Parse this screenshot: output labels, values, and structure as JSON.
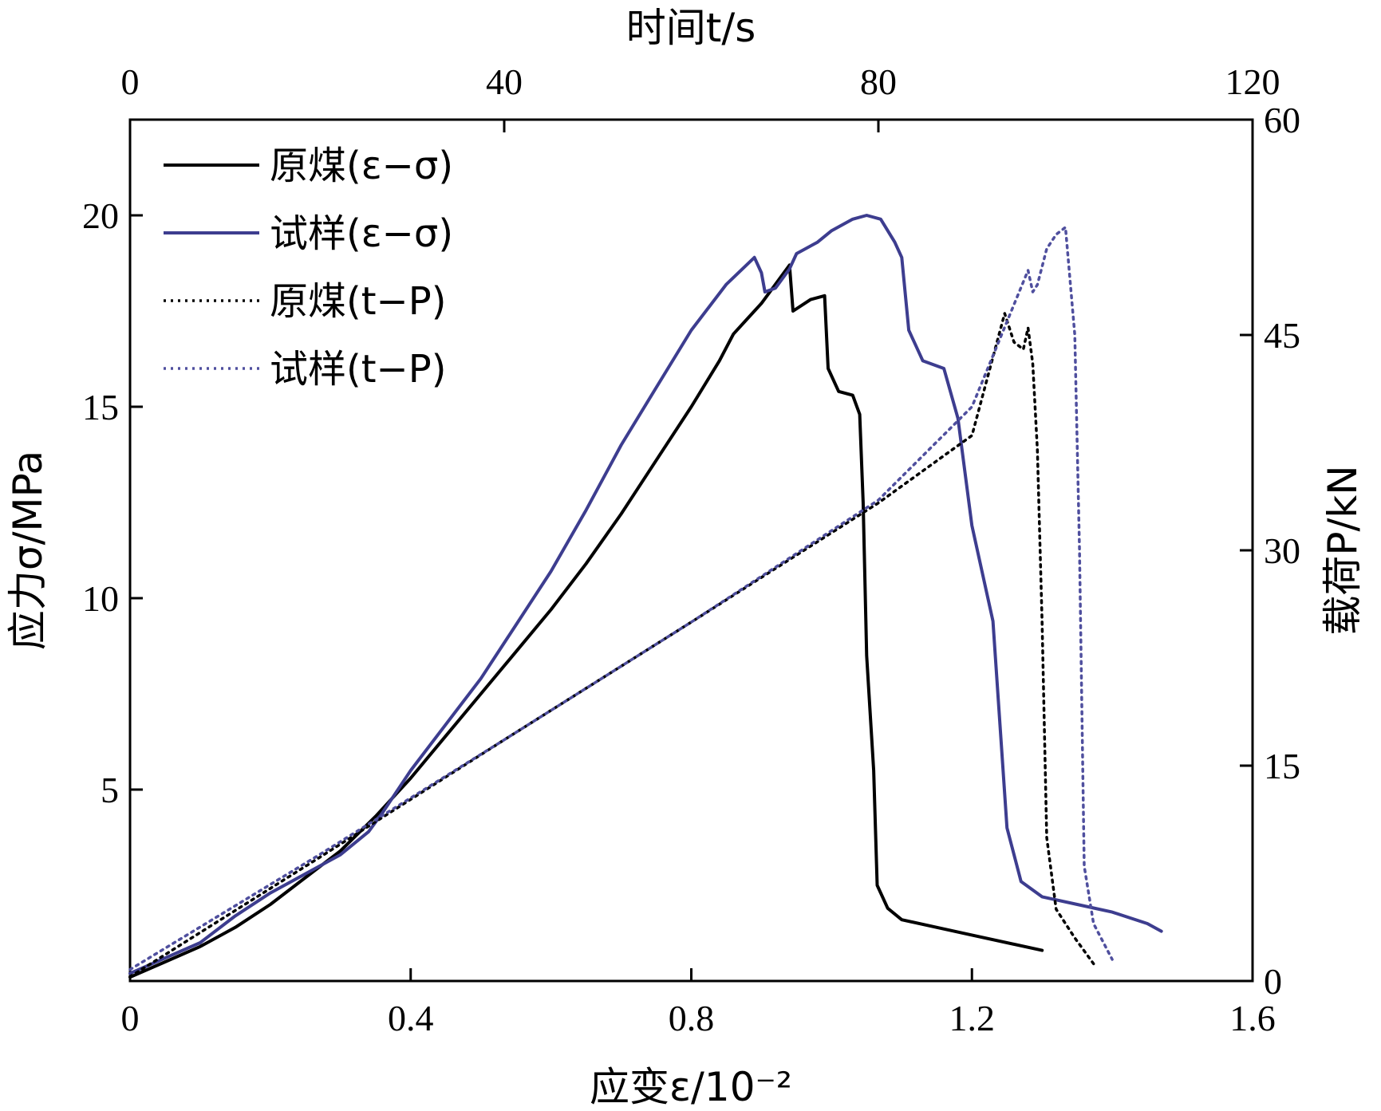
{
  "chart_data": {
    "type": "line",
    "axes": {
      "x_bottom": {
        "label": "应变ε/10⁻²",
        "range": [
          0,
          1.6
        ],
        "ticks": [
          0,
          0.4,
          0.8,
          1.2,
          1.6
        ],
        "tick_labels": [
          "0",
          "0.4",
          "0.8",
          "1.2",
          "1.6"
        ]
      },
      "x_top": {
        "label": "时间t/s",
        "range": [
          0,
          120
        ],
        "ticks": [
          0,
          40,
          80,
          120
        ],
        "tick_labels": [
          "0",
          "40",
          "80",
          "120"
        ]
      },
      "y_left": {
        "label": "应力σ/MPa",
        "range": [
          0,
          22.5
        ],
        "ticks": [
          5,
          10,
          15,
          20
        ],
        "tick_labels": [
          "5",
          "10",
          "15",
          "20"
        ]
      },
      "y_right": {
        "label": "载荷P/kN",
        "range": [
          0,
          60
        ],
        "ticks": [
          0,
          15,
          30,
          45,
          60
        ],
        "tick_labels": [
          "0",
          "15",
          "30",
          "45",
          "60"
        ]
      }
    },
    "legend": {
      "placement": "top-left"
    },
    "grid": false,
    "series": [
      {
        "name": "原煤(ε−σ)",
        "x_axis": "x_bottom",
        "y_axis": "y_left",
        "color": "#000000",
        "dash": "solid",
        "points": [
          [
            0.0,
            0.1
          ],
          [
            0.05,
            0.5
          ],
          [
            0.1,
            0.9
          ],
          [
            0.15,
            1.4
          ],
          [
            0.2,
            2.0
          ],
          [
            0.25,
            2.7
          ],
          [
            0.3,
            3.4
          ],
          [
            0.35,
            4.3
          ],
          [
            0.4,
            5.3
          ],
          [
            0.45,
            6.4
          ],
          [
            0.5,
            7.5
          ],
          [
            0.55,
            8.6
          ],
          [
            0.6,
            9.7
          ],
          [
            0.65,
            10.9
          ],
          [
            0.7,
            12.2
          ],
          [
            0.75,
            13.6
          ],
          [
            0.8,
            15.0
          ],
          [
            0.84,
            16.2
          ],
          [
            0.86,
            16.9
          ],
          [
            0.88,
            17.3
          ],
          [
            0.9,
            17.7
          ],
          [
            0.92,
            18.2
          ],
          [
            0.94,
            18.7
          ],
          [
            0.945,
            17.5
          ],
          [
            0.97,
            17.8
          ],
          [
            0.99,
            17.9
          ],
          [
            0.995,
            16.0
          ],
          [
            1.01,
            15.4
          ],
          [
            1.03,
            15.3
          ],
          [
            1.04,
            14.8
          ],
          [
            1.045,
            12.5
          ],
          [
            1.05,
            8.5
          ],
          [
            1.06,
            5.5
          ],
          [
            1.065,
            2.5
          ],
          [
            1.08,
            1.9
          ],
          [
            1.1,
            1.6
          ],
          [
            1.15,
            1.4
          ],
          [
            1.2,
            1.2
          ],
          [
            1.3,
            0.8
          ]
        ]
      },
      {
        "name": "试样(ε−σ)",
        "x_axis": "x_bottom",
        "y_axis": "y_left",
        "color": "#3d3d8f",
        "dash": "solid",
        "points": [
          [
            0.0,
            0.2
          ],
          [
            0.05,
            0.6
          ],
          [
            0.1,
            1.0
          ],
          [
            0.15,
            1.7
          ],
          [
            0.2,
            2.3
          ],
          [
            0.25,
            2.8
          ],
          [
            0.3,
            3.3
          ],
          [
            0.34,
            3.9
          ],
          [
            0.36,
            4.4
          ],
          [
            0.4,
            5.5
          ],
          [
            0.45,
            6.7
          ],
          [
            0.5,
            7.9
          ],
          [
            0.55,
            9.3
          ],
          [
            0.6,
            10.7
          ],
          [
            0.65,
            12.3
          ],
          [
            0.7,
            14.0
          ],
          [
            0.75,
            15.5
          ],
          [
            0.8,
            17.0
          ],
          [
            0.85,
            18.2
          ],
          [
            0.89,
            18.9
          ],
          [
            0.9,
            18.5
          ],
          [
            0.905,
            18.0
          ],
          [
            0.92,
            18.1
          ],
          [
            0.94,
            18.6
          ],
          [
            0.95,
            19.0
          ],
          [
            0.98,
            19.3
          ],
          [
            1.0,
            19.6
          ],
          [
            1.03,
            19.9
          ],
          [
            1.05,
            20.0
          ],
          [
            1.07,
            19.9
          ],
          [
            1.09,
            19.3
          ],
          [
            1.1,
            18.9
          ],
          [
            1.11,
            17.0
          ],
          [
            1.13,
            16.2
          ],
          [
            1.16,
            16.0
          ],
          [
            1.18,
            14.7
          ],
          [
            1.2,
            11.9
          ],
          [
            1.23,
            9.4
          ],
          [
            1.25,
            4.0
          ],
          [
            1.27,
            2.6
          ],
          [
            1.3,
            2.2
          ],
          [
            1.35,
            2.0
          ],
          [
            1.4,
            1.8
          ],
          [
            1.45,
            1.5
          ],
          [
            1.47,
            1.3
          ]
        ]
      },
      {
        "name": "原煤(t−P)",
        "x_axis": "x_top",
        "y_axis": "y_right",
        "color": "#000000",
        "dash": "dotted",
        "points": [
          [
            0,
            0.3
          ],
          [
            20,
            8.5
          ],
          [
            40,
            16.8
          ],
          [
            60,
            25.0
          ],
          [
            80,
            33.3
          ],
          [
            90,
            38.0
          ],
          [
            93.5,
            46.5
          ],
          [
            94.5,
            44.5
          ],
          [
            95.5,
            44.0
          ],
          [
            96.0,
            45.5
          ],
          [
            96.5,
            43.0
          ],
          [
            97.0,
            37.0
          ],
          [
            97.5,
            25.0
          ],
          [
            98.0,
            10.0
          ],
          [
            99.0,
            5.0
          ],
          [
            101,
            3.0
          ],
          [
            103,
            1.2
          ]
        ]
      },
      {
        "name": "试样(t−P)",
        "x_axis": "x_top",
        "y_axis": "y_right",
        "color": "#4f4f9e",
        "dash": "dotted",
        "points": [
          [
            0,
            0.8
          ],
          [
            20,
            8.7
          ],
          [
            40,
            16.8
          ],
          [
            60,
            25.0
          ],
          [
            80,
            33.5
          ],
          [
            90,
            40.0
          ],
          [
            96,
            49.5
          ],
          [
            96.5,
            48.0
          ],
          [
            97,
            48.5
          ],
          [
            98,
            51.0
          ],
          [
            99,
            52.0
          ],
          [
            100,
            52.5
          ],
          [
            101,
            45.0
          ],
          [
            101.5,
            30.0
          ],
          [
            102,
            8.0
          ],
          [
            103,
            4.0
          ],
          [
            105,
            1.5
          ]
        ]
      }
    ]
  }
}
